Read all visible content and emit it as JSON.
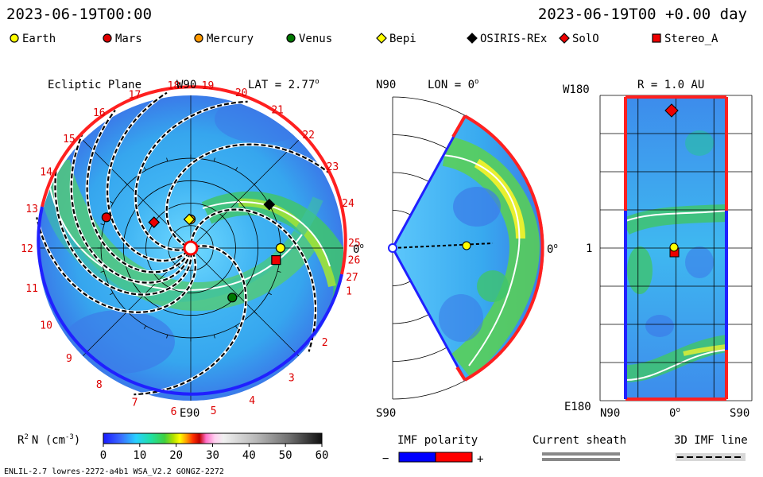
{
  "header": {
    "left_time": "2023-06-19T00:00",
    "right_time": "2023-06-19T00 +0.00 day"
  },
  "legend": {
    "items": [
      {
        "label": "Earth",
        "marker": "circle",
        "color": "#ffff00"
      },
      {
        "label": "Mars",
        "marker": "circle",
        "color": "#e00000"
      },
      {
        "label": "Mercury",
        "marker": "circle",
        "color": "#ff9900"
      },
      {
        "label": "Venus",
        "marker": "circle",
        "color": "#007700"
      },
      {
        "label": "Bepi",
        "marker": "diamond",
        "color": "#ffff00"
      },
      {
        "label": "OSIRIS-REx",
        "marker": "diamond",
        "color": "#000000"
      },
      {
        "label": "SolO",
        "marker": "diamond",
        "color": "#ee0000"
      },
      {
        "label": "Stereo_A",
        "marker": "square",
        "color": "#ee0000"
      }
    ]
  },
  "chart_data": [
    {
      "type": "heatmap",
      "panel": "ecliptic",
      "title": "Ecliptic Plane",
      "lat_label": "LAT = 2.77",
      "lat_unit": "o",
      "top_label": "W90",
      "bottom_label": "E90",
      "right_label": "0",
      "right_unit": "o",
      "rotation_numbers": [
        "1",
        "2",
        "3",
        "4",
        "5",
        "6",
        "7",
        "8",
        "9",
        "10",
        "11",
        "12",
        "13",
        "14",
        "15",
        "16",
        "17",
        "18",
        "19",
        "20",
        "21",
        "22",
        "23",
        "24",
        "25",
        "26",
        "27"
      ],
      "rotation_tick_angles_deg": [
        -15,
        -35,
        -52,
        -68,
        -82,
        -96,
        -110,
        -124,
        -138,
        -152,
        -166,
        -180,
        166,
        152,
        138,
        124,
        110,
        96,
        84,
        72,
        58,
        44,
        30,
        16,
        2,
        -4,
        -10
      ],
      "grid_circles_au": [
        0.25,
        0.5,
        0.75,
        1.0
      ],
      "max_radius_au": 1.7,
      "bodies": [
        {
          "name": "Earth",
          "r": 1.0,
          "lon_deg": 0
        },
        {
          "name": "Stereo_A",
          "r": 0.96,
          "lon_deg": -8
        },
        {
          "name": "Venus",
          "r": 0.72,
          "lon_deg": -50
        },
        {
          "name": "Mercury",
          "r": 0.32,
          "lon_deg": 90
        },
        {
          "name": "Mars",
          "r": 1.0,
          "lon_deg": 160
        },
        {
          "name": "SolO",
          "r": 0.5,
          "lon_deg": 145
        },
        {
          "name": "OSIRIS-REx",
          "r": 1.0,
          "lon_deg": 29
        },
        {
          "name": "Bepi",
          "r": 0.32,
          "lon_deg": 93
        }
      ]
    },
    {
      "type": "heatmap",
      "panel": "meridional",
      "title": "LON = 0",
      "title_unit": "o",
      "top_label": "N90",
      "bottom_label": "S90",
      "right_label": "0",
      "right_unit": "o",
      "lat_range_deg": [
        -60,
        60
      ],
      "earth_r_au": 1.0
    },
    {
      "type": "heatmap",
      "panel": "r_surface",
      "title": "R = 1.0 AU",
      "top_label": "W180",
      "middle_label": "1",
      "bottom_label": "E180",
      "x_tick_labels": [
        "N90",
        "0",
        "S90"
      ],
      "x_tick_unit": "o"
    },
    {
      "type": "colorbar",
      "label": "R",
      "label_sup": "2",
      "label_rest": "N (cm",
      "label_rest_sup": "-3",
      "label_close": ")",
      "ticks": [
        "0",
        "10",
        "20",
        "30",
        "40",
        "50",
        "60"
      ],
      "range": [
        0,
        60
      ]
    }
  ],
  "bottom": {
    "imf_polarity_label": "IMF polarity",
    "minus_sign": "−",
    "plus_sign": "+",
    "current_sheath_label": "Current sheath",
    "imf_line_label": "3D IMF line",
    "footer": "ENLIL-2.7 lowres-2272-a4b1 WSA_V2.2 GONGZ-2272",
    "colors": {
      "negative": "#0000ff",
      "positive": "#ff0000",
      "sheath": "#888888"
    }
  }
}
